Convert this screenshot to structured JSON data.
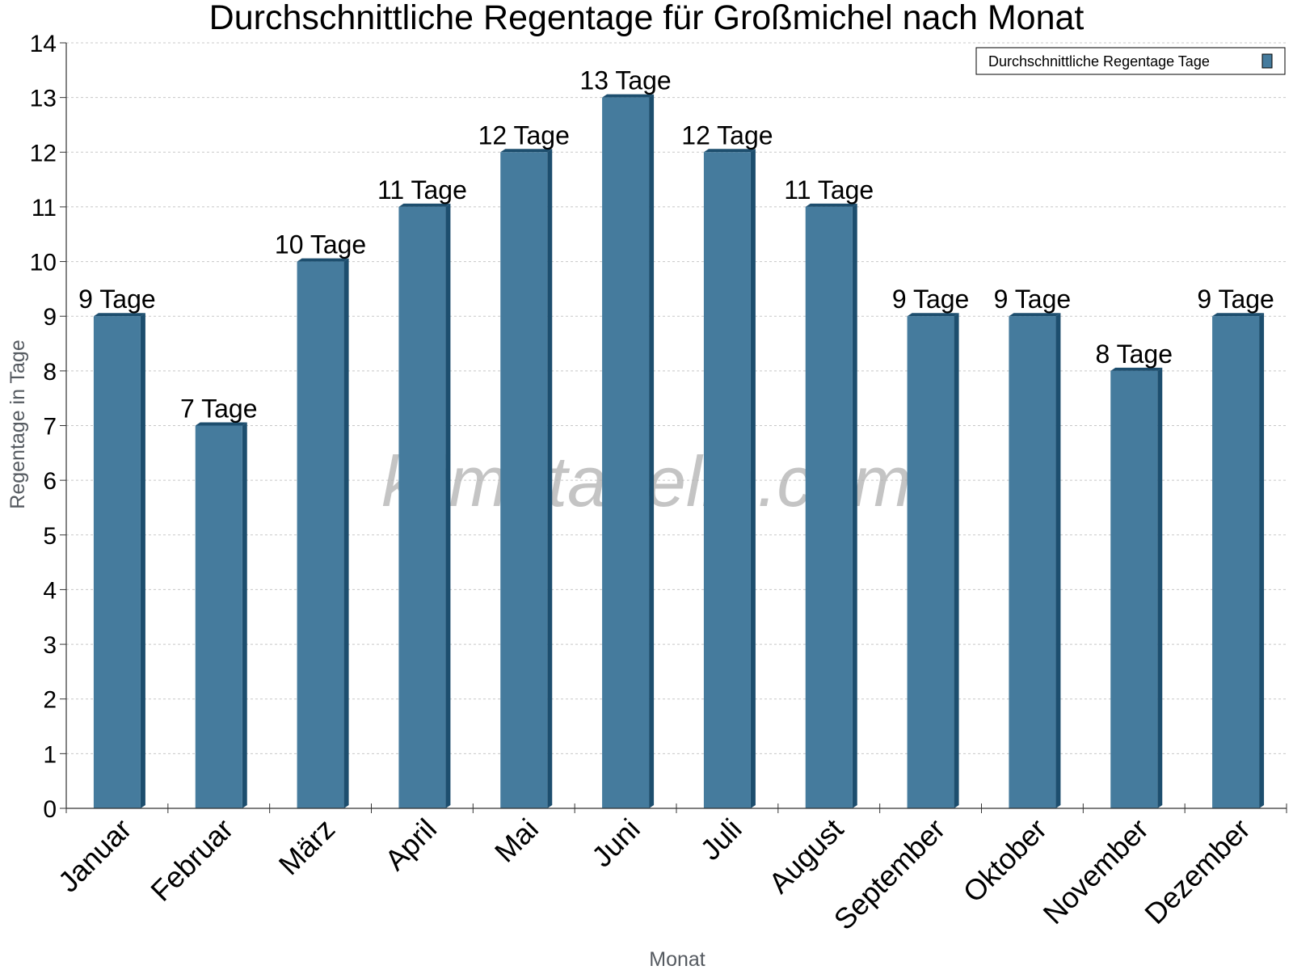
{
  "chart_data": {
    "type": "bar",
    "title": "Durchschnittliche Regentage für Großmichel nach Monat",
    "xlabel": "Monat",
    "ylabel": "Regentage in Tage",
    "categories": [
      "Januar",
      "Februar",
      "März",
      "April",
      "Mai",
      "Juni",
      "Juli",
      "August",
      "September",
      "Oktober",
      "November",
      "Dezember"
    ],
    "series": [
      {
        "name": "Durchschnittliche Regentage Tage",
        "values": [
          9,
          7,
          10,
          11,
          12,
          13,
          12,
          11,
          9,
          9,
          8,
          9
        ],
        "data_labels": [
          "9 Tage",
          "7 Tage",
          "10 Tage",
          "11 Tage",
          "12 Tage",
          "13 Tage",
          "12 Tage",
          "11 Tage",
          "9 Tage",
          "9 Tage",
          "8 Tage",
          "9 Tage"
        ]
      }
    ],
    "ylim": [
      0,
      14
    ],
    "yticks": [
      0,
      1,
      2,
      3,
      4,
      5,
      6,
      7,
      8,
      9,
      10,
      11,
      12,
      13,
      14
    ],
    "grid": true,
    "legend_position": "top-right",
    "colors": {
      "bar": "#457b9d",
      "bar_side": "#1d4e6e",
      "grid": "#c8c8c8",
      "axis": "#333333"
    }
  },
  "watermark": "klimatabelle.com"
}
